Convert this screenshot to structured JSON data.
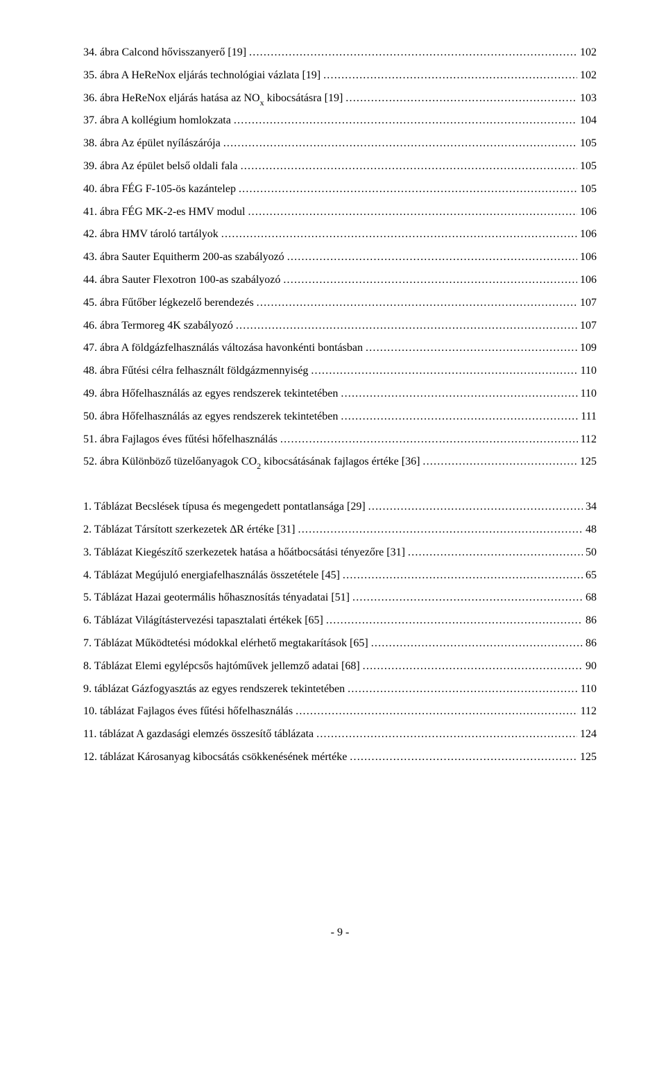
{
  "figures": [
    {
      "title": "34. ábra Calcond hővisszanyerő [19]",
      "page": "102"
    },
    {
      "title": "35. ábra A HeReNox eljárás technológiai vázlata [19]",
      "page": "102"
    },
    {
      "title": "36. ábra HeReNox eljárás hatása az NO<sub class=\"sub\">x</sub> kibocsátásra [19]",
      "page": "103"
    },
    {
      "title": "37. ábra A kollégium homlokzata",
      "page": "104"
    },
    {
      "title": "38. ábra Az épület nyílászárója",
      "page": "105"
    },
    {
      "title": "39. ábra Az épület belső oldali fala",
      "page": "105"
    },
    {
      "title": "40. ábra FÉG F-105-ös kazántelep",
      "page": "105"
    },
    {
      "title": "41. ábra FÉG MK-2-es HMV modul",
      "page": "106"
    },
    {
      "title": "42. ábra HMV tároló tartályok",
      "page": "106"
    },
    {
      "title": "43. ábra Sauter Equitherm 200-as szabályozó",
      "page": "106"
    },
    {
      "title": "44. ábra Sauter Flexotron 100-as szabályozó",
      "page": "106"
    },
    {
      "title": "45. ábra Fűtőber légkezelő berendezés",
      "page": "107"
    },
    {
      "title": "46. ábra Termoreg 4K szabályozó",
      "page": "107"
    },
    {
      "title": "47. ábra A földgázfelhasználás változása havonkénti bontásban",
      "page": "109"
    },
    {
      "title": "48. ábra Fűtési célra felhasznált földgázmennyiség",
      "page": "110"
    },
    {
      "title": "49. ábra Hőfelhasználás az egyes rendszerek tekintetében",
      "page": "110"
    },
    {
      "title": "50. ábra Hőfelhasználás az egyes rendszerek tekintetében",
      "page": "111"
    },
    {
      "title": "51. ábra Fajlagos éves fűtési hőfelhasználás",
      "page": "112"
    },
    {
      "title": "52. ábra Különböző tüzelőanyagok CO<sub class=\"sub\">2</sub>  kibocsátásának fajlagos értéke [36]",
      "page": "125"
    }
  ],
  "tables": [
    {
      "title": "1. Táblázat Becslések típusa és megengedett pontatlansága [29]",
      "page": "34"
    },
    {
      "title": "2. Táblázat Társított szerkezetek ∆R értéke [31]",
      "page": "48"
    },
    {
      "title": "3. Táblázat Kiegészítő szerkezetek hatása a hőátbocsátási tényezőre [31]",
      "page": "50"
    },
    {
      "title": "4. Táblázat Megújuló energiafelhasználás összetétele [45]",
      "page": "65"
    },
    {
      "title": "5. Táblázat Hazai geotermális hőhasznosítás tényadatai [51]",
      "page": "68"
    },
    {
      "title": "6. Táblázat Világítástervezési tapasztalati értékek [65]",
      "page": "86"
    },
    {
      "title": "7. Táblázat Működtetési módokkal elérhető megtakarítások [65]",
      "page": "86"
    },
    {
      "title": "8. Táblázat Elemi egylépcsős hajtóművek jellemző adatai [68]",
      "page": "90"
    },
    {
      "title": "9. táblázat Gázfogyasztás az egyes rendszerek tekintetében",
      "page": "110"
    },
    {
      "title": "10. táblázat Fajlagos éves fűtési hőfelhasználás",
      "page": "112"
    },
    {
      "title": "11. táblázat A gazdasági elemzés összesítő táblázata",
      "page": "124"
    },
    {
      "title": "12. táblázat Károsanyag kibocsátás csökkenésének mértéke",
      "page": "125"
    }
  ],
  "footer": "- 9 -"
}
